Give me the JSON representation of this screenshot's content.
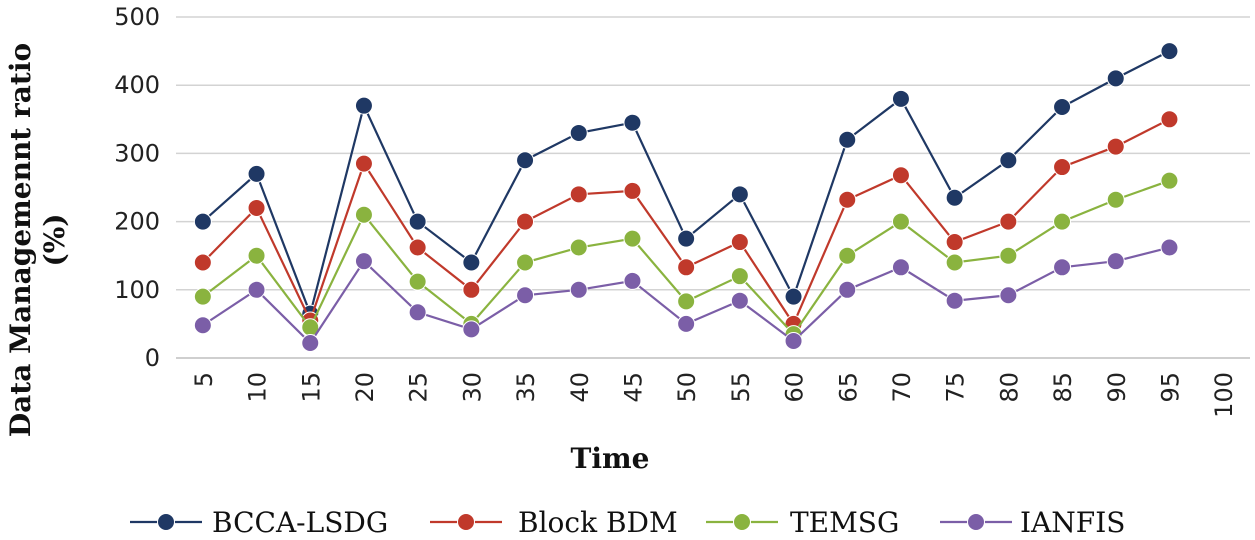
{
  "chart_data": {
    "type": "line",
    "title": "",
    "xlabel": "Time",
    "ylabel_line1": "Data Managemennt ratio",
    "ylabel_line2": "(%)",
    "ylim": [
      0,
      500
    ],
    "yticks": [
      0,
      100,
      200,
      300,
      400,
      500
    ],
    "categories": [
      "5",
      "10",
      "15",
      "20",
      "25",
      "30",
      "35",
      "40",
      "45",
      "50",
      "55",
      "60",
      "65",
      "70",
      "75",
      "80",
      "85",
      "90",
      "95",
      "100"
    ],
    "grid": true,
    "legend_position": "bottom",
    "series": [
      {
        "name": "BCCA-LSDG",
        "color": "#1f3864",
        "values": [
          200,
          270,
          65,
          370,
          200,
          140,
          290,
          330,
          345,
          175,
          240,
          90,
          320,
          380,
          235,
          290,
          368,
          410,
          450,
          null
        ]
      },
      {
        "name": "Block BDM",
        "color": "#c0392b",
        "values": [
          140,
          220,
          55,
          285,
          162,
          100,
          200,
          240,
          245,
          133,
          170,
          50,
          232,
          268,
          170,
          200,
          280,
          310,
          350,
          null
        ]
      },
      {
        "name": "TEMSG",
        "color": "#8ab33f",
        "values": [
          90,
          150,
          45,
          210,
          112,
          50,
          140,
          162,
          175,
          83,
          120,
          35,
          150,
          200,
          140,
          150,
          200,
          232,
          260,
          null
        ]
      },
      {
        "name": "IANFIS",
        "color": "#7b5ea7",
        "values": [
          48,
          100,
          22,
          142,
          67,
          42,
          92,
          100,
          113,
          50,
          84,
          25,
          100,
          133,
          84,
          92,
          133,
          142,
          162,
          null
        ]
      }
    ]
  }
}
